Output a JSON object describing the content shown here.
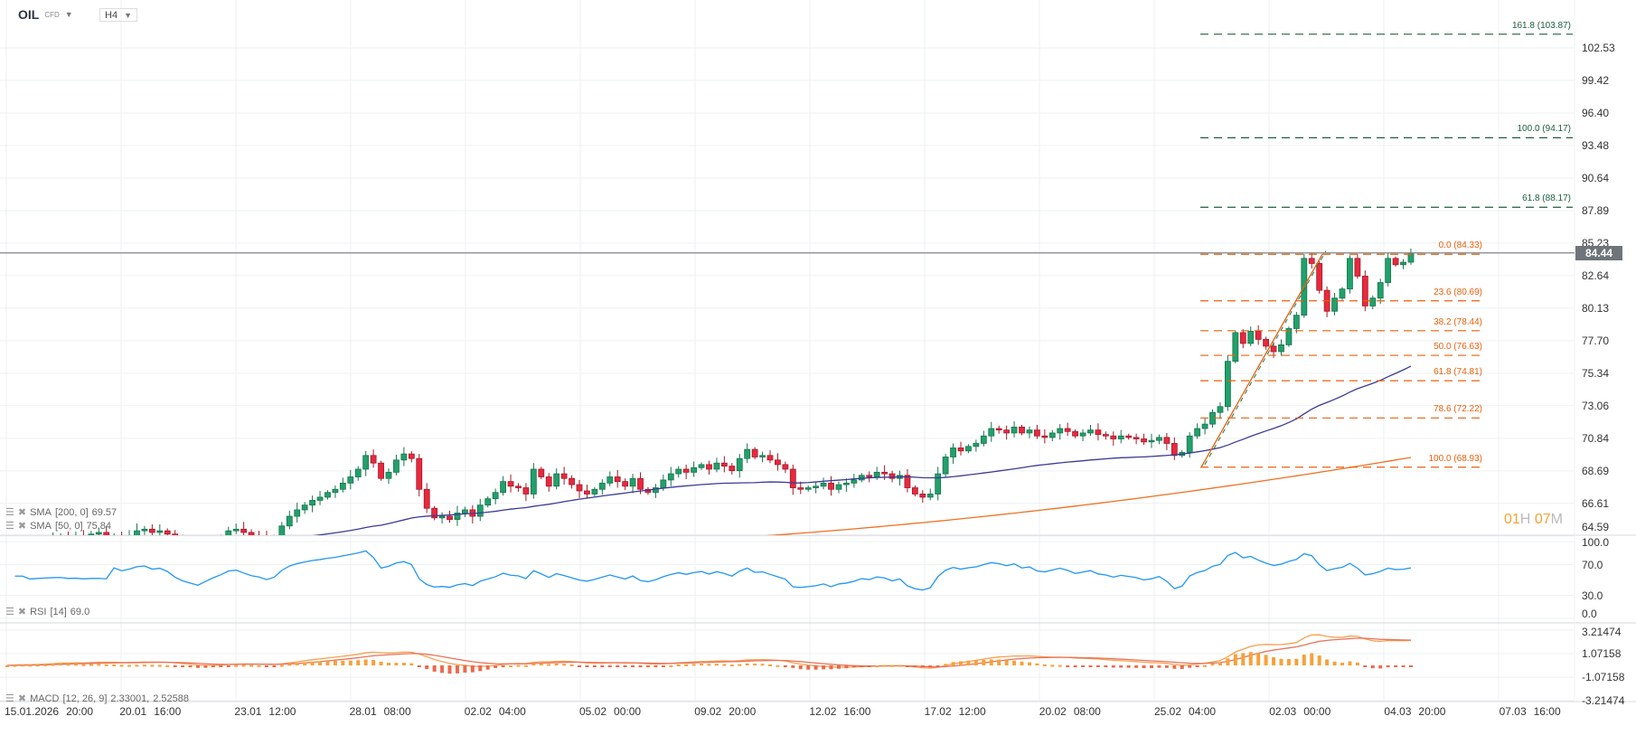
{
  "header": {
    "symbol": "OIL",
    "type": "CFD",
    "timeframe": "H4"
  },
  "price_axis": [
    "102.53",
    "99.42",
    "96.40",
    "93.48",
    "90.64",
    "87.89",
    "85.23",
    "82.64",
    "80.13",
    "77.70",
    "75.34",
    "73.06",
    "70.84",
    "68.69",
    "66.61",
    "64.59"
  ],
  "current_price": "84.44",
  "countdown": {
    "hours": "01",
    "h": "H",
    "minutes": "07",
    "m": "M"
  },
  "indicators": {
    "sma200": {
      "label": "SMA",
      "params": "[200,  0]",
      "value": "69.57",
      "start": 64.55,
      "end": 69.57,
      "color": "#f07020"
    },
    "sma50": {
      "label": "SMA",
      "params": "[50,  0]",
      "value": "75.84",
      "color": "#3a3a96"
    },
    "rsi": {
      "label": "RSI",
      "params": "[14]",
      "value": "69.0",
      "axis": [
        "100.0",
        "70.0",
        "30.0",
        "0.0"
      ],
      "color": "#2196f3"
    },
    "macd": {
      "label": "MACD",
      "params": "[12,  26,  9]",
      "value1": "2.33001,",
      "value2": "2.52588",
      "axis": [
        "3.21474",
        "1.07158",
        "-1.07158",
        "-3.21474"
      ]
    }
  },
  "fib_levels": [
    {
      "label": "161.8 (103.87)",
      "price": 103.87,
      "group": "ext"
    },
    {
      "label": "100.0 (94.17)",
      "price": 94.17,
      "group": "ext"
    },
    {
      "label": "61.8 (88.17)",
      "price": 88.17,
      "group": "ext"
    },
    {
      "label": "0.0 (84.33)",
      "price": 84.33,
      "group": "ret"
    },
    {
      "label": "23.6 (80.69)",
      "price": 80.69,
      "group": "ret"
    },
    {
      "label": "38.2 (78.44)",
      "price": 78.44,
      "group": "ret"
    },
    {
      "label": "50.0 (76.63)",
      "price": 76.63,
      "group": "ret"
    },
    {
      "label": "61.8 (74.81)",
      "price": 74.81,
      "group": "ret"
    },
    {
      "label": "78.6 (72.22)",
      "price": 72.22,
      "group": "ret"
    },
    {
      "label": "100.0 (68.93)",
      "price": 68.93,
      "group": "ret"
    }
  ],
  "time_axis": [
    {
      "date": "15.01.2026",
      "time": "20:00"
    },
    {
      "date": "20.01",
      "time": "16:00"
    },
    {
      "date": "23.01",
      "time": "12:00"
    },
    {
      "date": "28.01",
      "time": "08:00"
    },
    {
      "date": "02.02",
      "time": "04:00"
    },
    {
      "date": "05.02",
      "time": "00:00"
    },
    {
      "date": "09.02",
      "time": "20:00"
    },
    {
      "date": "12.02",
      "time": "16:00"
    },
    {
      "date": "17.02",
      "time": "12:00"
    },
    {
      "date": "20.02",
      "time": "08:00"
    },
    {
      "date": "25.02",
      "time": "04:00"
    },
    {
      "date": "02.03",
      "time": "00:00"
    },
    {
      "date": "04.03",
      "time": "20:00"
    },
    {
      "date": "07.03",
      "time": "16:00"
    }
  ],
  "colors": {
    "up": "#22a06b",
    "down": "#e8293e",
    "fib_ret": "#e8600c",
    "fib_ext": "#1d5e3d",
    "price_line": "#7d8489"
  },
  "chart_data": {
    "type": "candlestick",
    "closes": [
      63.5,
      63.8,
      64.0,
      63.7,
      63.9,
      64.1,
      64.4,
      64.6,
      64.3,
      64.5,
      64.2,
      64.7,
      64.8,
      64.5,
      64.6,
      64.4,
      64.6,
      64.9,
      65.0,
      64.8,
      64.9,
      64.7,
      64.3,
      64.0,
      63.8,
      63.6,
      63.9,
      64.2,
      64.5,
      64.9,
      65.0,
      64.8,
      64.6,
      64.5,
      64.3,
      64.5,
      65.2,
      65.8,
      66.2,
      66.5,
      66.8,
      67.0,
      67.3,
      67.5,
      67.9,
      68.3,
      68.8,
      69.7,
      69.2,
      68.2,
      68.6,
      69.4,
      69.8,
      69.5,
      67.5,
      66.3,
      65.7,
      65.8,
      65.6,
      66.0,
      66.2,
      65.8,
      66.5,
      66.9,
      67.3,
      68.0,
      67.7,
      67.6,
      67.2,
      68.8,
      68.3,
      67.7,
      68.5,
      68.2,
      67.8,
      67.4,
      67.2,
      67.5,
      67.9,
      68.3,
      68.0,
      67.7,
      68.2,
      67.5,
      67.3,
      67.6,
      68.1,
      68.5,
      68.8,
      68.6,
      68.9,
      69.1,
      68.8,
      69.2,
      69.0,
      68.7,
      69.5,
      70.1,
      69.6,
      69.7,
      69.4,
      69.1,
      68.8,
      67.6,
      67.5,
      67.6,
      67.7,
      67.9,
      67.5,
      67.8,
      67.9,
      68.1,
      68.4,
      68.3,
      68.6,
      68.5,
      68.2,
      68.4,
      67.6,
      67.2,
      67.0,
      67.2,
      68.5,
      69.6,
      70.2,
      70.0,
      70.3,
      70.5,
      71.0,
      71.5,
      71.4,
      71.2,
      71.6,
      71.2,
      71.4,
      71.0,
      70.9,
      71.2,
      71.5,
      71.3,
      71.0,
      71.2,
      71.4,
      71.1,
      71.0,
      70.8,
      71.0,
      70.9,
      70.8,
      70.6,
      70.7,
      70.9,
      70.5,
      69.7,
      69.9,
      71.0,
      71.5,
      71.8,
      72.6,
      73.0,
      76.2,
      78.3,
      77.5,
      78.4,
      77.8,
      77.3,
      76.9,
      77.4,
      78.6,
      79.6,
      84.0,
      83.6,
      81.5,
      79.9,
      80.9,
      81.6,
      84.0,
      82.6,
      80.3,
      80.9,
      82.1,
      84.0,
      83.5,
      83.7,
      84.44
    ],
    "price_range": [
      64.59,
      102.53
    ],
    "scale": "log"
  }
}
